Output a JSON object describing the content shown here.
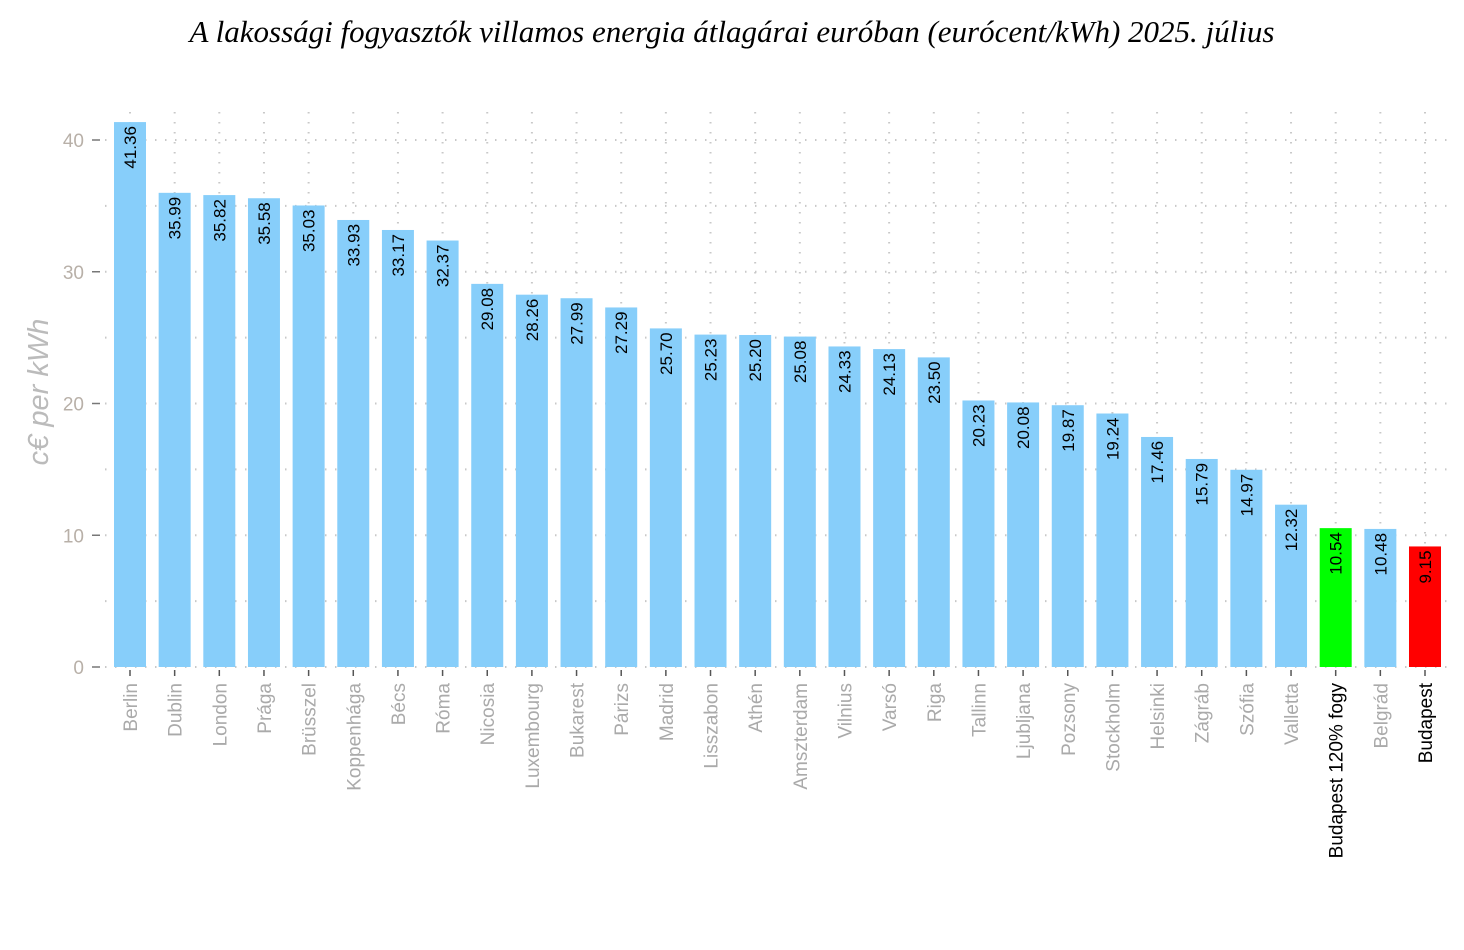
{
  "chart_data": {
    "type": "bar",
    "title": "A lakossági fogyasztók villamos energia átlagárai euróban (eurócent/kWh) 2025. július",
    "xlabel": "",
    "ylabel": "c€ per kWh",
    "ylim": [
      0,
      41.5
    ],
    "yticks": [
      0,
      10,
      20,
      30,
      40
    ],
    "grid": true,
    "categories": [
      "Berlin",
      "Dublin",
      "London",
      "Prága",
      "Brüsszel",
      "Koppenhága",
      "Bécs",
      "Róma",
      "Nicosia",
      "Luxembourg",
      "Bukarest",
      "Párizs",
      "Madrid",
      "Lisszabon",
      "Athén",
      "Amszterdam",
      "Vilnius",
      "Varsó",
      "Riga",
      "Tallinn",
      "Ljubljana",
      "Pozsony",
      "Stockholm",
      "Helsinki",
      "Zágráb",
      "Szófia",
      "Valletta",
      "Budapest 120% fogy",
      "Belgrád",
      "Budapest"
    ],
    "values": [
      41.36,
      35.99,
      35.82,
      35.58,
      35.03,
      33.93,
      33.17,
      32.37,
      29.08,
      28.26,
      27.99,
      27.29,
      25.7,
      25.23,
      25.2,
      25.08,
      24.33,
      24.13,
      23.5,
      20.23,
      20.08,
      19.87,
      19.24,
      17.46,
      15.79,
      14.97,
      12.32,
      10.54,
      10.48,
      9.15
    ],
    "value_labels": [
      "41.36",
      "35.99",
      "35.82",
      "35.58",
      "35.03",
      "33.93",
      "33.17",
      "32.37",
      "29.08",
      "28.26",
      "27.99",
      "27.29",
      "25.70",
      "25.23",
      "25.20",
      "25.08",
      "24.33",
      "24.13",
      "23.50",
      "20.23",
      "20.08",
      "19.87",
      "19.24",
      "17.46",
      "15.79",
      "14.97",
      "12.32",
      "10.54",
      "10.48",
      "9.15"
    ],
    "colors": {
      "default": "#87CEFA",
      "Budapest 120% fogy": "#00FF00",
      "Budapest": "#FF0000"
    },
    "highlight_labels": [
      "Budapest 120% fogy",
      "Budapest"
    ]
  }
}
